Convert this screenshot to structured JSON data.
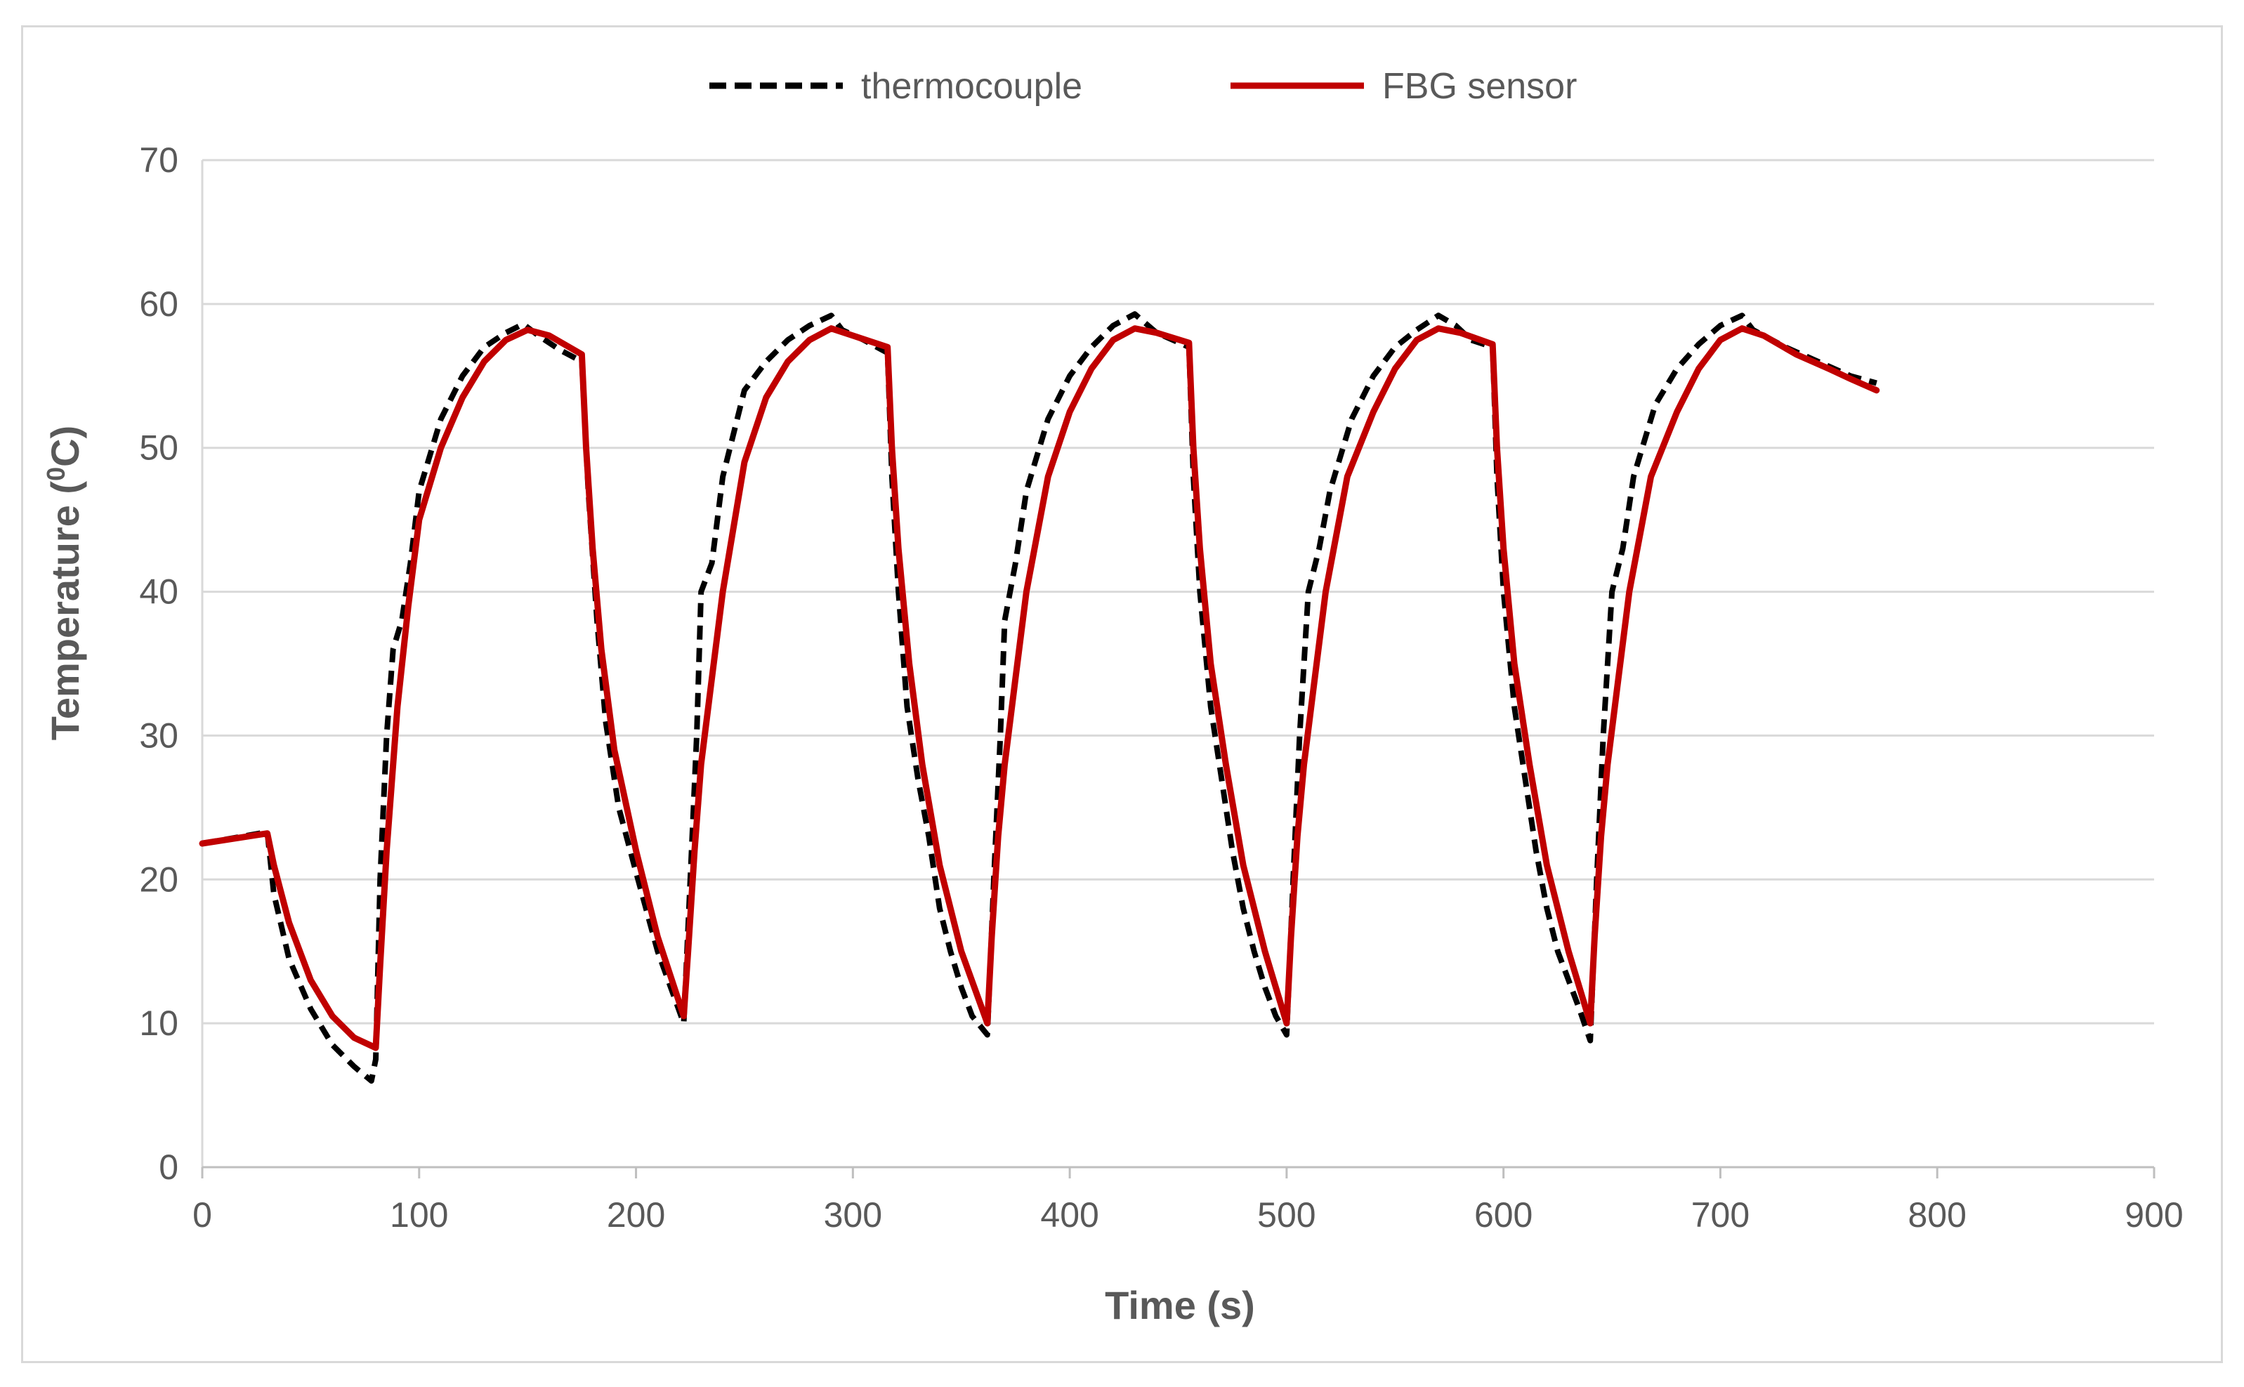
{
  "chart_data": {
    "type": "line",
    "title": "",
    "xlabel": "Time (s)",
    "ylabel_main": "Temperature (",
    "ylabel_sup": "0",
    "ylabel_end": "C)",
    "xlim": [
      0,
      900
    ],
    "ylim": [
      0,
      70
    ],
    "xticks": [
      0,
      100,
      200,
      300,
      400,
      500,
      600,
      700,
      800,
      900
    ],
    "yticks": [
      0,
      10,
      20,
      30,
      40,
      50,
      60,
      70
    ],
    "xtick_labels": [
      "0",
      "100",
      "200",
      "300",
      "400",
      "500",
      "600",
      "700",
      "800",
      "900"
    ],
    "ytick_labels": [
      "0",
      "10",
      "20",
      "30",
      "40",
      "50",
      "60",
      "70"
    ],
    "grid": "horizontal",
    "legend_position": "top-center",
    "series": [
      {
        "name": "thermocouple",
        "color": "#000000",
        "dash": "dashed",
        "points": [
          [
            0,
            22.5
          ],
          [
            30,
            23.3
          ],
          [
            33,
            19
          ],
          [
            40,
            14.5
          ],
          [
            50,
            11
          ],
          [
            60,
            8.5
          ],
          [
            70,
            7
          ],
          [
            78,
            6
          ],
          [
            80,
            7.5
          ],
          [
            82,
            20
          ],
          [
            85,
            30
          ],
          [
            88,
            36
          ],
          [
            92,
            38
          ],
          [
            96,
            42
          ],
          [
            100,
            47
          ],
          [
            110,
            52
          ],
          [
            120,
            55
          ],
          [
            130,
            57
          ],
          [
            140,
            58
          ],
          [
            148,
            58.6
          ],
          [
            155,
            57.8
          ],
          [
            165,
            56.8
          ],
          [
            175,
            56
          ],
          [
            178,
            47
          ],
          [
            182,
            38
          ],
          [
            186,
            31
          ],
          [
            192,
            25
          ],
          [
            200,
            20.5
          ],
          [
            210,
            15
          ],
          [
            222,
            10
          ],
          [
            225,
            20
          ],
          [
            228,
            30
          ],
          [
            230,
            40
          ],
          [
            235,
            42
          ],
          [
            240,
            48
          ],
          [
            250,
            54
          ],
          [
            260,
            56
          ],
          [
            270,
            57.5
          ],
          [
            280,
            58.5
          ],
          [
            290,
            59.2
          ],
          [
            295,
            58.2
          ],
          [
            305,
            57.5
          ],
          [
            316,
            56.6
          ],
          [
            318,
            48
          ],
          [
            321,
            40
          ],
          [
            325,
            32
          ],
          [
            330,
            27
          ],
          [
            335,
            23
          ],
          [
            340,
            18
          ],
          [
            345,
            15
          ],
          [
            350,
            12.5
          ],
          [
            355,
            10.5
          ],
          [
            362,
            9.2
          ],
          [
            365,
            20
          ],
          [
            368,
            30
          ],
          [
            370,
            38
          ],
          [
            375,
            42
          ],
          [
            380,
            47
          ],
          [
            390,
            52
          ],
          [
            400,
            55
          ],
          [
            410,
            57
          ],
          [
            420,
            58.5
          ],
          [
            430,
            59.3
          ],
          [
            440,
            58
          ],
          [
            455,
            57
          ],
          [
            457,
            48
          ],
          [
            460,
            40
          ],
          [
            465,
            32
          ],
          [
            470,
            27
          ],
          [
            475,
            22
          ],
          [
            480,
            18
          ],
          [
            485,
            15
          ],
          [
            490,
            12.5
          ],
          [
            495,
            10.5
          ],
          [
            500,
            9.2
          ],
          [
            503,
            20
          ],
          [
            506,
            30
          ],
          [
            510,
            40
          ],
          [
            515,
            43
          ],
          [
            520,
            47
          ],
          [
            530,
            52
          ],
          [
            540,
            55
          ],
          [
            550,
            57
          ],
          [
            560,
            58.2
          ],
          [
            570,
            59.2
          ],
          [
            578,
            58.5
          ],
          [
            585,
            57.5
          ],
          [
            595,
            57
          ],
          [
            597,
            48
          ],
          [
            600,
            40
          ],
          [
            605,
            32
          ],
          [
            610,
            27
          ],
          [
            615,
            22
          ],
          [
            620,
            18
          ],
          [
            625,
            15
          ],
          [
            630,
            13
          ],
          [
            635,
            11
          ],
          [
            640,
            8.8
          ],
          [
            643,
            20
          ],
          [
            646,
            30
          ],
          [
            650,
            40
          ],
          [
            655,
            43
          ],
          [
            660,
            48
          ],
          [
            670,
            53
          ],
          [
            680,
            55.5
          ],
          [
            690,
            57.2
          ],
          [
            700,
            58.5
          ],
          [
            710,
            59.2
          ],
          [
            715,
            58.2
          ],
          [
            730,
            57
          ],
          [
            745,
            56
          ],
          [
            760,
            55
          ],
          [
            772,
            54.5
          ]
        ]
      },
      {
        "name": "FBG sensor",
        "color": "#c00000",
        "dash": "solid",
        "points": [
          [
            0,
            22.5
          ],
          [
            30,
            23.2
          ],
          [
            33,
            21
          ],
          [
            40,
            17
          ],
          [
            50,
            13
          ],
          [
            60,
            10.5
          ],
          [
            70,
            9
          ],
          [
            80,
            8.3
          ],
          [
            82,
            14
          ],
          [
            85,
            22
          ],
          [
            90,
            32
          ],
          [
            95,
            39
          ],
          [
            100,
            45
          ],
          [
            110,
            50
          ],
          [
            120,
            53.5
          ],
          [
            130,
            56
          ],
          [
            140,
            57.5
          ],
          [
            150,
            58.2
          ],
          [
            160,
            57.8
          ],
          [
            175,
            56.5
          ],
          [
            177,
            50
          ],
          [
            180,
            43
          ],
          [
            184,
            36
          ],
          [
            190,
            29
          ],
          [
            200,
            22
          ],
          [
            210,
            16
          ],
          [
            222,
            10.5
          ],
          [
            224,
            15
          ],
          [
            227,
            22
          ],
          [
            230,
            28
          ],
          [
            235,
            34
          ],
          [
            240,
            40
          ],
          [
            250,
            49
          ],
          [
            260,
            53.5
          ],
          [
            270,
            56
          ],
          [
            280,
            57.5
          ],
          [
            290,
            58.3
          ],
          [
            300,
            57.8
          ],
          [
            316,
            57
          ],
          [
            318,
            50
          ],
          [
            321,
            43
          ],
          [
            326,
            35
          ],
          [
            332,
            28
          ],
          [
            340,
            21
          ],
          [
            350,
            15
          ],
          [
            362,
            10
          ],
          [
            364,
            16
          ],
          [
            367,
            23
          ],
          [
            370,
            28
          ],
          [
            375,
            34
          ],
          [
            380,
            40
          ],
          [
            390,
            48
          ],
          [
            400,
            52.5
          ],
          [
            410,
            55.5
          ],
          [
            420,
            57.5
          ],
          [
            430,
            58.3
          ],
          [
            440,
            58
          ],
          [
            455,
            57.3
          ],
          [
            457,
            50
          ],
          [
            460,
            43
          ],
          [
            465,
            35
          ],
          [
            472,
            28
          ],
          [
            480,
            21
          ],
          [
            490,
            15
          ],
          [
            500,
            10
          ],
          [
            502,
            16
          ],
          [
            505,
            23
          ],
          [
            508,
            28
          ],
          [
            513,
            34
          ],
          [
            518,
            40
          ],
          [
            528,
            48
          ],
          [
            540,
            52.5
          ],
          [
            550,
            55.5
          ],
          [
            560,
            57.5
          ],
          [
            570,
            58.3
          ],
          [
            580,
            58
          ],
          [
            595,
            57.2
          ],
          [
            597,
            50
          ],
          [
            600,
            43
          ],
          [
            605,
            35
          ],
          [
            612,
            28
          ],
          [
            620,
            21
          ],
          [
            630,
            15
          ],
          [
            640,
            10
          ],
          [
            642,
            16
          ],
          [
            645,
            23
          ],
          [
            648,
            28
          ],
          [
            653,
            34
          ],
          [
            658,
            40
          ],
          [
            668,
            48
          ],
          [
            680,
            52.5
          ],
          [
            690,
            55.5
          ],
          [
            700,
            57.5
          ],
          [
            710,
            58.3
          ],
          [
            720,
            57.8
          ],
          [
            735,
            56.5
          ],
          [
            750,
            55.5
          ],
          [
            760,
            54.8
          ],
          [
            772,
            54
          ]
        ]
      }
    ]
  }
}
